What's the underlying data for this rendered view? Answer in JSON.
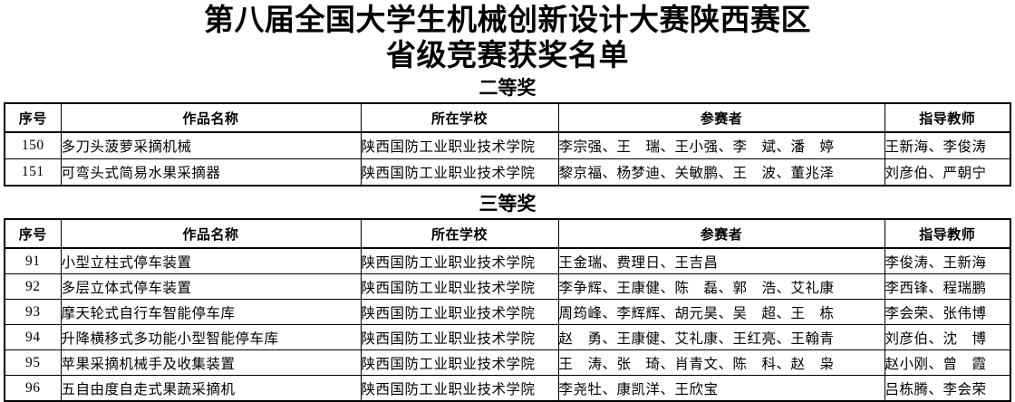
{
  "page": {
    "title_line1": "第八届全国大学生机械创新设计大赛陕西赛区",
    "title_line2": "省级竞赛获奖名单"
  },
  "sections": [
    {
      "heading": "二等奖",
      "columns": [
        "序号",
        "作品名称",
        "所在学校",
        "参赛者",
        "指导教师"
      ],
      "rows": [
        [
          "150",
          "多刀头菠萝采摘机械",
          "陕西国防工业职业技术学院",
          "李宗强、王　瑞、王小强、李　斌、潘　婷",
          "王新海、李俊涛"
        ],
        [
          "151",
          "可弯头式简易水果采摘器",
          "陕西国防工业职业技术学院",
          "黎京福、杨梦迪、关敏鹏、王　波、董兆泽",
          "刘彦伯、严朝宁"
        ]
      ]
    },
    {
      "heading": "三等奖",
      "columns": [
        "序号",
        "作品名称",
        "所在学校",
        "参赛者",
        "指导教师"
      ],
      "rows": [
        [
          "91",
          "小型立柱式停车装置",
          "陕西国防工业职业技术学院",
          "王金瑞、费理日、王吉昌",
          "李俊涛、王新海"
        ],
        [
          "92",
          "多层立体式停车装置",
          "陕西国防工业职业技术学院",
          "李争辉、王康健、陈　磊、郭　浩、艾礼康",
          "李西锋、程瑞鹏"
        ],
        [
          "93",
          "摩天轮式自行车智能停车库",
          "陕西国防工业职业技术学院",
          "周筠峰、李辉辉、胡元昊、吴　超、王　栋",
          "李会荣、张伟博"
        ],
        [
          "94",
          "升降横移式多功能小型智能停车库",
          "陕西国防工业职业技术学院",
          "赵　勇、王康健、艾礼康、王红亮、王翰青",
          "刘彦伯、沈　博"
        ],
        [
          "95",
          "苹果采摘机械手及收集装置",
          "陕西国防工业职业技术学院",
          "王　涛、张　琦、肖青文、陈　科、赵　枭",
          "赵小刚、曾　霞"
        ],
        [
          "96",
          "五自由度自走式果蔬采摘机",
          "陕西国防工业职业技术学院",
          "李尧牡、康凯洋、王欣宝",
          "吕栋腾、李会荣"
        ]
      ]
    }
  ]
}
